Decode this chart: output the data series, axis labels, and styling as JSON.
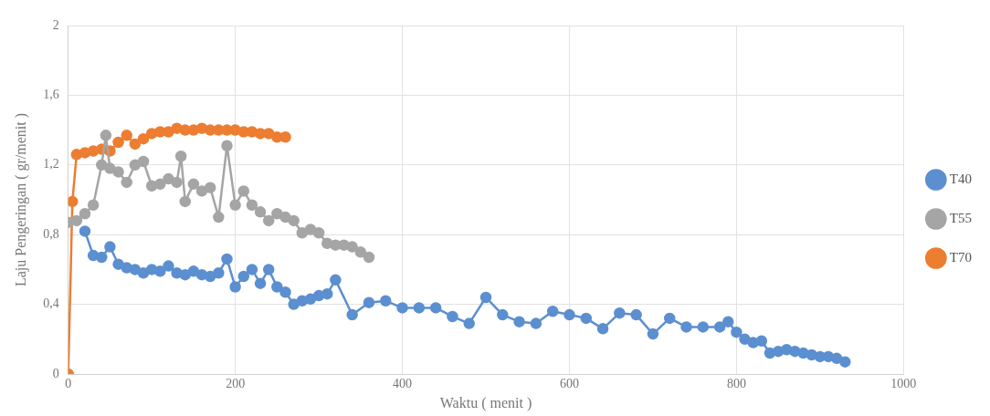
{
  "chart_data": {
    "type": "line",
    "xlabel": "Waktu ( menit )",
    "ylabel": "Laju Pengeringan ( gr/menit )",
    "xlim": [
      0,
      1000
    ],
    "xticks": [
      0,
      200,
      400,
      600,
      800,
      1000
    ],
    "ylim": [
      0,
      2
    ],
    "yticks": [
      {
        "value": 0,
        "label": "0"
      },
      {
        "value": 0.4,
        "label": "0,4"
      },
      {
        "value": 0.8,
        "label": "0,8"
      },
      {
        "value": 1.2,
        "label": "1,2"
      },
      {
        "value": 1.6,
        "label": "1,6"
      },
      {
        "value": 2,
        "label": "2"
      }
    ],
    "grid": true,
    "legend": "right",
    "marker": "circle",
    "series": [
      {
        "name": "T40",
        "color": "#5b8fd0",
        "x": [
          20,
          30,
          40,
          50,
          60,
          70,
          80,
          90,
          100,
          110,
          120,
          130,
          140,
          150,
          160,
          170,
          180,
          190,
          200,
          210,
          220,
          230,
          240,
          250,
          260,
          270,
          280,
          290,
          300,
          310,
          320,
          340,
          360,
          380,
          400,
          420,
          440,
          460,
          480,
          500,
          520,
          540,
          560,
          580,
          600,
          620,
          640,
          660,
          680,
          700,
          720,
          740,
          760,
          780,
          790,
          800,
          810,
          820,
          830,
          840,
          850,
          860,
          870,
          880,
          890,
          900,
          910,
          920,
          930
        ],
        "values": [
          0.82,
          0.68,
          0.67,
          0.73,
          0.63,
          0.61,
          0.6,
          0.58,
          0.6,
          0.59,
          0.62,
          0.58,
          0.57,
          0.59,
          0.57,
          0.56,
          0.58,
          0.66,
          0.5,
          0.56,
          0.6,
          0.52,
          0.6,
          0.5,
          0.47,
          0.4,
          0.42,
          0.43,
          0.45,
          0.46,
          0.54,
          0.34,
          0.41,
          0.42,
          0.38,
          0.38,
          0.38,
          0.33,
          0.29,
          0.44,
          0.34,
          0.3,
          0.29,
          0.36,
          0.34,
          0.32,
          0.26,
          0.35,
          0.34,
          0.23,
          0.32,
          0.27,
          0.27,
          0.27,
          0.3,
          0.24,
          0.2,
          0.18,
          0.19,
          0.12,
          0.13,
          0.14,
          0.13,
          0.12,
          0.11,
          0.1,
          0.1,
          0.09,
          0.07
        ]
      },
      {
        "name": "T55",
        "color": "#a5a5a5",
        "x": [
          0,
          10,
          20,
          30,
          40,
          45,
          50,
          60,
          70,
          80,
          90,
          100,
          110,
          120,
          130,
          135,
          140,
          150,
          160,
          170,
          180,
          190,
          200,
          210,
          220,
          230,
          240,
          250,
          260,
          270,
          280,
          290,
          300,
          310,
          320,
          330,
          340,
          350,
          360
        ],
        "values": [
          0.87,
          0.88,
          0.92,
          0.97,
          1.2,
          1.37,
          1.18,
          1.16,
          1.1,
          1.2,
          1.22,
          1.08,
          1.09,
          1.12,
          1.1,
          1.25,
          0.99,
          1.09,
          1.05,
          1.07,
          0.9,
          1.31,
          0.97,
          1.05,
          0.97,
          0.93,
          0.88,
          0.92,
          0.9,
          0.88,
          0.81,
          0.83,
          0.81,
          0.75,
          0.74,
          0.74,
          0.73,
          0.7,
          0.67
        ]
      },
      {
        "name": "T70",
        "color": "#ed7d31",
        "x": [
          0,
          5,
          10,
          20,
          30,
          40,
          50,
          60,
          70,
          80,
          90,
          100,
          110,
          120,
          130,
          140,
          150,
          160,
          170,
          180,
          190,
          200,
          210,
          220,
          230,
          240,
          250,
          260
        ],
        "values": [
          0,
          0.99,
          1.26,
          1.27,
          1.28,
          1.29,
          1.28,
          1.33,
          1.37,
          1.32,
          1.35,
          1.38,
          1.39,
          1.39,
          1.41,
          1.4,
          1.4,
          1.41,
          1.4,
          1.4,
          1.4,
          1.4,
          1.39,
          1.39,
          1.38,
          1.38,
          1.36,
          1.36
        ]
      }
    ]
  }
}
